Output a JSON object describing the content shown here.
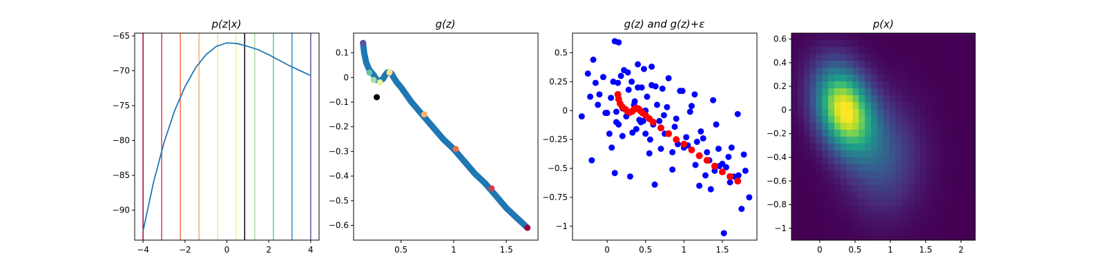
{
  "chart_data": [
    {
      "type": "line",
      "title": "p(z|x)",
      "xlabel": "",
      "ylabel": "",
      "xlim": [
        -4.4,
        4.4
      ],
      "ylim": [
        -94.3,
        -64.6
      ],
      "xticks": [
        -4,
        -2,
        0,
        2,
        4
      ],
      "yticks": [
        -90,
        -85,
        -80,
        -75,
        -70,
        -65
      ],
      "series": [
        {
          "color": "#1f77b4",
          "x": [
            -4.0,
            -3.5,
            -3.0,
            -2.5,
            -2.0,
            -1.5,
            -1.0,
            -0.5,
            0.0,
            0.5,
            1.0,
            1.5,
            2.0,
            2.5,
            3.0,
            3.5,
            4.0
          ],
          "y": [
            -93.0,
            -86.0,
            -80.3,
            -75.8,
            -72.3,
            -69.6,
            -67.7,
            -66.5,
            -66.0,
            -66.1,
            -66.5,
            -67.0,
            -67.7,
            -68.5,
            -69.3,
            -70.0,
            -70.7
          ]
        }
      ],
      "vlines": [
        {
          "x": -4.0,
          "color": "#9e0142"
        },
        {
          "x": -3.11,
          "color": "#d53e4f"
        },
        {
          "x": -2.22,
          "color": "#f46d43"
        },
        {
          "x": -1.33,
          "color": "#fdae61"
        },
        {
          "x": -0.44,
          "color": "#fee08b"
        },
        {
          "x": 0.44,
          "color": "#e6f598"
        },
        {
          "x": 0.85,
          "color": "#000000"
        },
        {
          "x": 1.33,
          "color": "#abdda4"
        },
        {
          "x": 2.22,
          "color": "#66c2a5"
        },
        {
          "x": 3.11,
          "color": "#3288bd"
        },
        {
          "x": 4.0,
          "color": "#5e4fa2"
        }
      ]
    },
    {
      "type": "scatter",
      "title": "g(z)",
      "xlabel": "",
      "ylabel": "",
      "xlim": [
        0.05,
        1.8
      ],
      "ylim": [
        -0.66,
        0.18
      ],
      "xticks": [
        0.5,
        1.0,
        1.5
      ],
      "yticks": [
        0.1,
        0.0,
        -0.1,
        -0.2,
        -0.3,
        -0.4,
        -0.5,
        -0.6
      ],
      "curve": {
        "color": "#1f77b4",
        "x": [
          0.14,
          0.15,
          0.17,
          0.2,
          0.24,
          0.27,
          0.3,
          0.33,
          0.35,
          0.37,
          0.39,
          0.41,
          0.43,
          0.46,
          0.5,
          0.55,
          0.6,
          0.7,
          0.8,
          0.9,
          1.0,
          1.1,
          1.2,
          1.3,
          1.4,
          1.5,
          1.6,
          1.7
        ],
        "y": [
          0.14,
          0.1,
          0.06,
          0.03,
          0.01,
          -0.01,
          -0.015,
          -0.005,
          0.01,
          0.02,
          0.02,
          0.015,
          0.0,
          -0.02,
          -0.04,
          -0.07,
          -0.1,
          -0.15,
          -0.2,
          -0.25,
          -0.29,
          -0.34,
          -0.39,
          -0.43,
          -0.48,
          -0.53,
          -0.57,
          -0.61
        ]
      },
      "highlights": [
        {
          "x": 0.14,
          "y": 0.14,
          "color": "#5e4fa2"
        },
        {
          "x": 0.2,
          "y": 0.02,
          "color": "#66c2a5"
        },
        {
          "x": 0.24,
          "y": -0.01,
          "color": "#abdda4"
        },
        {
          "x": 0.3,
          "y": -0.02,
          "color": "#e6f598"
        },
        {
          "x": 0.39,
          "y": 0.02,
          "color": "#fee08b"
        },
        {
          "x": 0.72,
          "y": -0.15,
          "color": "#fdae61"
        },
        {
          "x": 1.02,
          "y": -0.29,
          "color": "#f46d43"
        },
        {
          "x": 1.36,
          "y": -0.45,
          "color": "#d53e4f"
        },
        {
          "x": 1.7,
          "y": -0.61,
          "color": "#9e0142"
        },
        {
          "x": 0.27,
          "y": -0.08,
          "color": "#000000"
        }
      ]
    },
    {
      "type": "scatter",
      "title": "g(z) and g(z)+ε",
      "xlabel": "",
      "ylabel": "",
      "xlim": [
        -0.45,
        1.95
      ],
      "ylim": [
        -1.12,
        0.67
      ],
      "xticks": [
        0.0,
        0.5,
        1.0,
        1.5
      ],
      "yticks": [
        0.5,
        0.25,
        0.0,
        -0.25,
        -0.5,
        -0.75,
        -1.0
      ],
      "series": [
        {
          "name": "",
          "color": "#0000ff",
          "x": [
            -0.33,
            -0.25,
            -0.2,
            -0.18,
            -0.12,
            -0.15,
            -0.22,
            -0.05,
            0.0,
            0.05,
            0.08,
            0.1,
            0.12,
            0.15,
            0.18,
            0.2,
            0.22,
            0.25,
            0.28,
            0.3,
            0.32,
            0.35,
            0.38,
            0.4,
            0.42,
            0.45,
            0.48,
            0.5,
            0.52,
            0.55,
            0.58,
            0.6,
            0.62,
            0.65,
            0.7,
            0.72,
            0.75,
            0.8,
            0.85,
            0.9,
            0.95,
            1.0,
            1.05,
            1.1,
            1.15,
            1.2,
            1.25,
            1.3,
            1.35,
            1.4,
            1.45,
            1.5,
            1.55,
            1.6,
            1.65,
            1.7,
            1.75,
            1.8,
            1.85,
            -0.1,
            0.03,
            0.14,
            0.27,
            0.44,
            0.58,
            0.78,
            0.92,
            1.08,
            1.22,
            1.38,
            1.52,
            1.78,
            0.12,
            0.36,
            0.63,
            0.85,
            1.14,
            1.42,
            0.2,
            0.5,
            0.68,
            0.98,
            1.28,
            1.58,
            0.06,
            0.33,
            0.47,
            0.74,
            1.03,
            1.33,
            1.62,
            0.1,
            0.15,
            0.4,
            0.56,
            0.88,
            1.17,
            1.46,
            1.71,
            -0.02
          ],
          "y": [
            -0.05,
            0.32,
            -0.43,
            0.44,
            0.05,
            0.24,
            0.12,
            0.29,
            -0.02,
            0.11,
            0.25,
            0.6,
            -0.1,
            0.59,
            0.3,
            0.02,
            0.35,
            -0.05,
            0.18,
            -0.57,
            0.25,
            0.05,
            -0.16,
            0.4,
            -0.08,
            0.2,
            0.36,
            -0.2,
            0.12,
            -0.37,
            0.22,
            -0.12,
            -0.64,
            0.05,
            -0.33,
            0.19,
            -0.2,
            0.28,
            -0.51,
            -0.07,
            0.17,
            -0.32,
            -0.3,
            0.04,
            -0.47,
            -0.65,
            -0.24,
            -0.36,
            -0.68,
            -0.52,
            -0.33,
            -0.46,
            -0.49,
            -0.62,
            -0.57,
            -0.03,
            -0.85,
            -0.52,
            -0.75,
            0.14,
            -0.2,
            0.24,
            0.33,
            -0.1,
            0.38,
            0.03,
            -0.29,
            -0.01,
            -0.18,
            0.09,
            -1.06,
            -0.38,
            -0.01,
            0.08,
            0.21,
            -0.36,
            0.14,
            -0.12,
            -0.22,
            0.0,
            -0.09,
            0.17,
            -0.56,
            -0.4,
            -0.32,
            -0.19,
            -0.09,
            -0.04,
            -0.23,
            -0.43,
            -0.32,
            -0.54,
            -0.12,
            0.2,
            -0.25,
            -0.14,
            -0.27,
            -0.48,
            -0.56,
            -0.02
          ],
          "radius": 4.5
        },
        {
          "name": "",
          "color": "#ff0000",
          "x": [
            0.14,
            0.15,
            0.17,
            0.2,
            0.24,
            0.27,
            0.3,
            0.33,
            0.35,
            0.37,
            0.39,
            0.41,
            0.43,
            0.46,
            0.5,
            0.55,
            0.6,
            0.7,
            0.8,
            0.9,
            1.0,
            1.1,
            1.2,
            1.3,
            1.4,
            1.5,
            1.6,
            1.7
          ],
          "y": [
            0.14,
            0.1,
            0.06,
            0.03,
            0.01,
            -0.01,
            -0.015,
            -0.005,
            0.01,
            0.02,
            0.02,
            0.015,
            0.0,
            -0.02,
            -0.04,
            -0.07,
            -0.1,
            -0.15,
            -0.2,
            -0.25,
            -0.29,
            -0.34,
            -0.39,
            -0.43,
            -0.48,
            -0.53,
            -0.57,
            -0.61
          ],
          "radius": 5
        }
      ]
    },
    {
      "type": "heatmap",
      "title": "p(x)",
      "xlabel": "",
      "ylabel": "",
      "xlim": [
        -0.4,
        2.2
      ],
      "ylim": [
        -1.1,
        0.65
      ],
      "xticks": [
        0.0,
        0.5,
        1.0,
        1.5,
        2.0
      ],
      "yticks": [
        0.6,
        0.4,
        0.2,
        0.0,
        -0.2,
        -0.4,
        -0.6,
        -0.8,
        -1.0
      ],
      "colormap": "viridis",
      "grid": {
        "nx": 30,
        "ny": 30
      },
      "peak": {
        "x": 0.35,
        "y": 0.0
      }
    }
  ]
}
